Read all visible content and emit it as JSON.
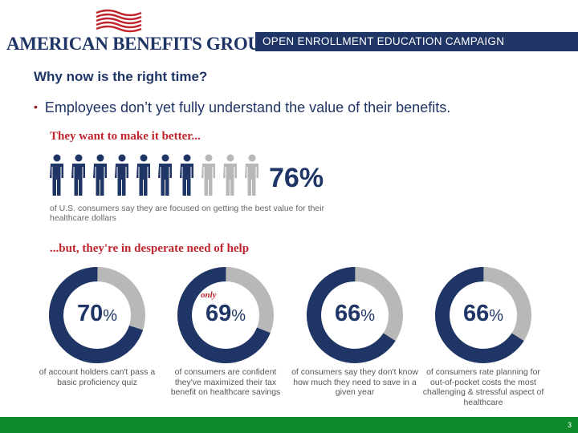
{
  "header": {
    "logo_text": "AMERICAN BENEFITS GROUP",
    "campaign": "OPEN ENROLLMENT EDUCATION CAMPAIGN"
  },
  "slide": {
    "title": "Why now is the right time?",
    "bullet": "Employees don’t yet fully understand the value of their benefits."
  },
  "infographic": {
    "heading_1": "They want to make it better...",
    "people_total": 10,
    "people_highlighted": 7.6,
    "people_percent": "76%",
    "people_caption": "of U.S. consumers say they are focused on getting the best value for their healthcare dollars",
    "heading_2": "...but, they're in desperate need of help",
    "stats": [
      {
        "value": "70",
        "unit": "%",
        "fraction": 0.7,
        "prefix": "",
        "caption": "of account holders can't pass a basic proficiency quiz"
      },
      {
        "value": "69",
        "unit": "%",
        "fraction": 0.69,
        "prefix": "only",
        "caption": "of consumers are confident they've maximized their tax benefit on healthcare savings"
      },
      {
        "value": "66",
        "unit": "%",
        "fraction": 0.66,
        "prefix": "",
        "caption": "of consumers say they don't know how much they need to save in a given year"
      },
      {
        "value": "66",
        "unit": "%",
        "fraction": 0.66,
        "prefix": "",
        "caption": "of consumers rate planning for out-of-pocket costs the most challenging & stressful aspect of healthcare"
      }
    ]
  },
  "footer": {
    "page_number": "3"
  },
  "colors": {
    "navy": "#1f3566",
    "red": "#c0252d",
    "gray": "#b8b8b8",
    "green": "#0f8a2a"
  }
}
